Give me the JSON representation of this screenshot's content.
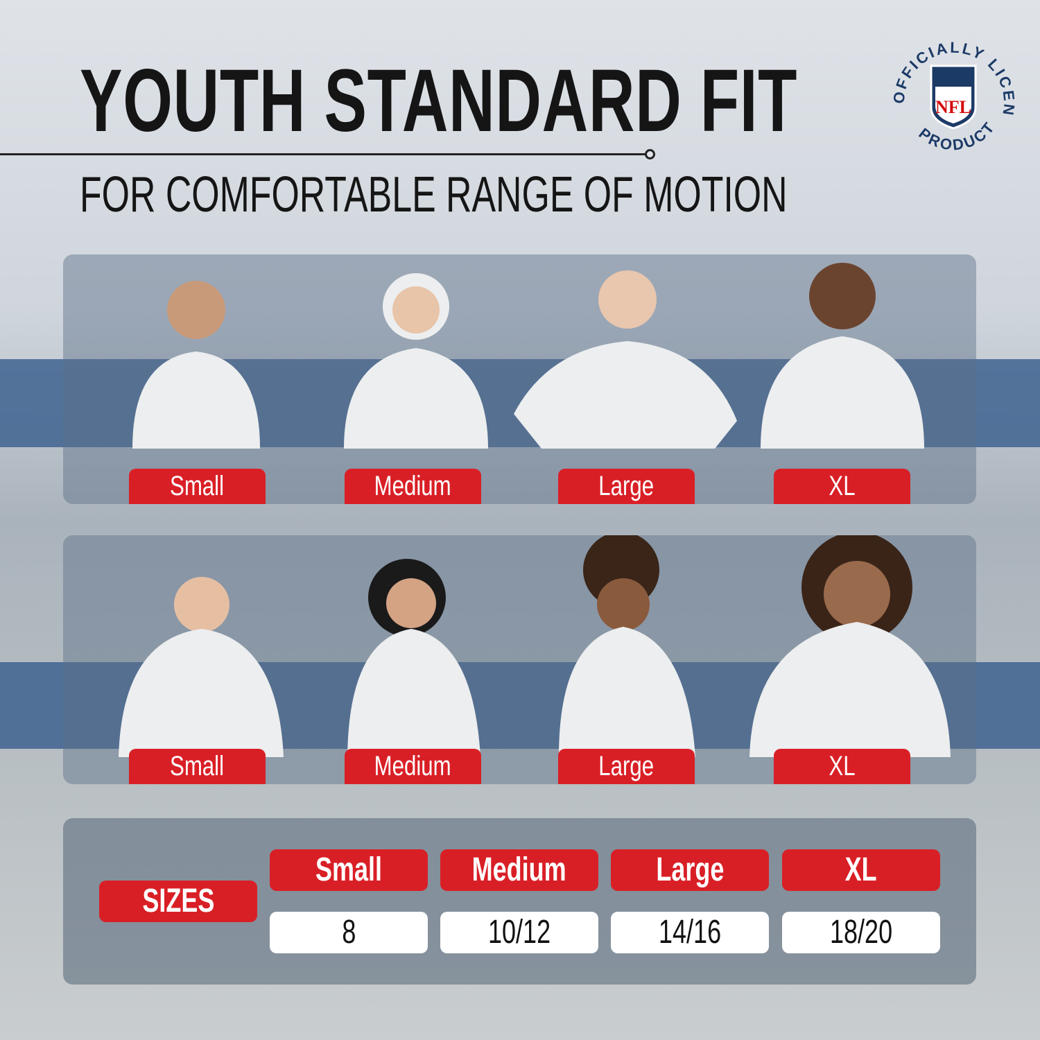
{
  "header": {
    "title": "YOUTH STANDARD FIT",
    "subtitle": "FOR COMFORTABLE RANGE OF MOTION"
  },
  "badge": {
    "text_top": "OFFICIALLY LICENSED",
    "text_bottom": "PRODUCT",
    "logo": "NFL",
    "colors": {
      "navy": "#013369",
      "red": "#d50a0a"
    }
  },
  "row1": {
    "labels": [
      "Small",
      "Medium",
      "Large",
      "XL"
    ]
  },
  "row2": {
    "labels": [
      "Small",
      "Medium",
      "Large",
      "XL"
    ]
  },
  "table": {
    "row_label": "SIZES",
    "headers": [
      "Small",
      "Medium",
      "Large",
      "XL"
    ],
    "values": [
      "8",
      "10/12",
      "14/16",
      "18/20"
    ]
  },
  "colors": {
    "accent_red": "#d91f26",
    "band_blue": "#3f6391"
  }
}
